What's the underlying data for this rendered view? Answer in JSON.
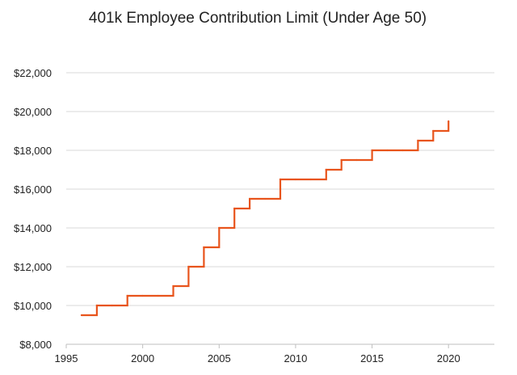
{
  "chart_data": {
    "type": "line",
    "step": true,
    "title": "401k Employee Contribution Limit (Under Age 50)",
    "xlabel": "",
    "ylabel": "",
    "xlim": [
      1995,
      2023
    ],
    "ylim": [
      8000,
      23000
    ],
    "x_ticks": [
      1995,
      2000,
      2005,
      2010,
      2015,
      2020
    ],
    "x_tick_labels": [
      "1995",
      "2000",
      "2005",
      "2010",
      "2015",
      "2020"
    ],
    "y_ticks": [
      8000,
      10000,
      12000,
      14000,
      16000,
      18000,
      20000,
      22000
    ],
    "y_tick_labels": [
      "$8,000",
      "$10,000",
      "$12,000",
      "$14,000",
      "$16,000",
      "$18,000",
      "$20,000",
      "$22,000"
    ],
    "grid": "horizontal",
    "legend": "none",
    "colors": {
      "line": "#E8541C",
      "grid": "#d9d9d9",
      "axis": "#bfbfbf"
    },
    "series": [
      {
        "x": [
          1996,
          1997,
          1998,
          1999,
          2000,
          2001,
          2002,
          2003,
          2004,
          2005,
          2006,
          2007,
          2008,
          2009,
          2010,
          2011,
          2012,
          2013,
          2014,
          2015,
          2016,
          2017,
          2018,
          2019,
          2020
        ],
        "values": [
          9500,
          10000,
          10000,
          10500,
          10500,
          10500,
          11000,
          12000,
          13000,
          14000,
          15000,
          15500,
          15500,
          16500,
          16500,
          16500,
          17000,
          17500,
          17500,
          18000,
          18000,
          18000,
          18500,
          19000,
          19500
        ]
      }
    ]
  }
}
